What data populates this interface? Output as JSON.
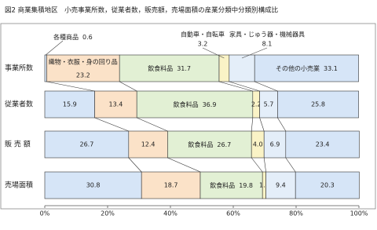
{
  "chart_data": {
    "type": "bar",
    "orientation": "horizontal",
    "stacked": true,
    "title": "図2 商業集積地区　小売事業所数，従業者数，販売額，売場面積の産業分類中分類別構成比",
    "categories": [
      "事業所数",
      "従業者数",
      "販 売 額",
      "売場面積"
    ],
    "series": [
      {
        "name": "各種商品",
        "color": "#d6e5f7",
        "values": [
          0.6,
          15.9,
          26.7,
          30.8
        ]
      },
      {
        "name": "織物・衣服・身の回り品",
        "color": "#fbe2c8",
        "values": [
          23.2,
          13.4,
          12.4,
          18.7
        ]
      },
      {
        "name": "飲食料品",
        "color": "#e2f0d4",
        "values": [
          31.7,
          36.9,
          26.7,
          19.8
        ]
      },
      {
        "name": "自動車・自転車",
        "color": "#faf3c6",
        "values": [
          3.2,
          2.2,
          4.0,
          1.1
        ],
        "value_labels": [
          "3.2",
          "2.2",
          "4.0",
          "1.1"
        ]
      },
      {
        "name": "家具・じゅう器・機械器具",
        "color": "#e4eef9",
        "values": [
          8.1,
          5.7,
          6.9,
          9.4
        ]
      },
      {
        "name": "その他の小売業",
        "color": "#d6e5f7",
        "values": [
          33.1,
          25.8,
          23.4,
          20.3
        ]
      }
    ],
    "xlim": [
      0,
      100
    ],
    "xticks": [
      {
        "value": 0,
        "label": "0%"
      },
      {
        "value": 20,
        "label": "20%"
      },
      {
        "value": 40,
        "label": "40%"
      },
      {
        "value": 60,
        "label": "60%"
      },
      {
        "value": 80,
        "label": "80%"
      },
      {
        "value": 100,
        "label": "100%"
      }
    ]
  }
}
